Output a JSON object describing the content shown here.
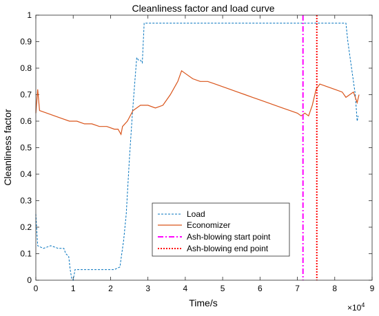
{
  "chart_data": {
    "type": "line",
    "title": "Cleanliness factor and load curve",
    "xlabel": "Time/s",
    "ylabel": "Cleanliness factor",
    "x_exponent_label": "×10^4",
    "x_exponent_base": "×10",
    "x_exponent_power": "4",
    "xlim": [
      0,
      9
    ],
    "ylim": [
      0,
      1
    ],
    "x_ticks": [
      0,
      1,
      2,
      3,
      4,
      5,
      6,
      7,
      8,
      9
    ],
    "y_ticks": [
      0,
      0.1,
      0.2,
      0.3,
      0.4,
      0.5,
      0.6,
      0.7,
      0.8,
      0.9,
      1
    ],
    "x_tick_labels": [
      "0",
      "1",
      "2",
      "3",
      "4",
      "5",
      "6",
      "7",
      "8",
      "9"
    ],
    "y_tick_labels": [
      "0",
      "0.1",
      "0.2",
      "0.3",
      "0.4",
      "0.5",
      "0.6",
      "0.7",
      "0.8",
      "0.9",
      "1"
    ],
    "grid": false,
    "legend_position": "bottom-center",
    "series": [
      {
        "name": "Load",
        "color": "#0072BD",
        "style": "dashed",
        "points": [
          [
            0,
            0.25
          ],
          [
            0.05,
            0.13
          ],
          [
            0.2,
            0.12
          ],
          [
            0.4,
            0.13
          ],
          [
            0.6,
            0.12
          ],
          [
            0.75,
            0.12
          ],
          [
            0.8,
            0.1
          ],
          [
            0.88,
            0.09
          ],
          [
            0.92,
            0.04
          ],
          [
            0.96,
            0.005
          ],
          [
            1.0,
            0.0
          ],
          [
            1.05,
            0.04
          ],
          [
            1.2,
            0.04
          ],
          [
            1.5,
            0.04
          ],
          [
            1.8,
            0.04
          ],
          [
            2.1,
            0.04
          ],
          [
            2.25,
            0.05
          ],
          [
            2.35,
            0.15
          ],
          [
            2.42,
            0.25
          ],
          [
            2.5,
            0.45
          ],
          [
            2.58,
            0.62
          ],
          [
            2.65,
            0.75
          ],
          [
            2.7,
            0.84
          ],
          [
            2.75,
            0.83
          ],
          [
            2.8,
            0.83
          ],
          [
            2.85,
            0.82
          ],
          [
            2.9,
            0.97
          ],
          [
            3.2,
            0.97
          ],
          [
            3.6,
            0.97
          ],
          [
            4.0,
            0.97
          ],
          [
            4.4,
            0.97
          ],
          [
            4.8,
            0.97
          ],
          [
            5.2,
            0.97
          ],
          [
            5.6,
            0.97
          ],
          [
            6.0,
            0.97
          ],
          [
            6.4,
            0.97
          ],
          [
            6.8,
            0.97
          ],
          [
            7.2,
            0.97
          ],
          [
            7.6,
            0.97
          ],
          [
            8.0,
            0.97
          ],
          [
            8.3,
            0.97
          ],
          [
            8.35,
            0.9
          ],
          [
            8.45,
            0.8
          ],
          [
            8.55,
            0.7
          ],
          [
            8.6,
            0.6
          ],
          [
            8.63,
            0.62
          ]
        ]
      },
      {
        "name": "Economizer",
        "color": "#D95319",
        "style": "solid",
        "points": [
          [
            0,
            0.63
          ],
          [
            0.05,
            0.72
          ],
          [
            0.1,
            0.64
          ],
          [
            0.3,
            0.63
          ],
          [
            0.5,
            0.62
          ],
          [
            0.7,
            0.61
          ],
          [
            0.9,
            0.6
          ],
          [
            1.1,
            0.6
          ],
          [
            1.3,
            0.59
          ],
          [
            1.5,
            0.59
          ],
          [
            1.7,
            0.58
          ],
          [
            1.9,
            0.58
          ],
          [
            2.1,
            0.57
          ],
          [
            2.2,
            0.57
          ],
          [
            2.28,
            0.55
          ],
          [
            2.32,
            0.58
          ],
          [
            2.45,
            0.6
          ],
          [
            2.6,
            0.64
          ],
          [
            2.8,
            0.66
          ],
          [
            3.0,
            0.66
          ],
          [
            3.2,
            0.65
          ],
          [
            3.4,
            0.66
          ],
          [
            3.6,
            0.7
          ],
          [
            3.8,
            0.75
          ],
          [
            3.9,
            0.79
          ],
          [
            4.0,
            0.78
          ],
          [
            4.2,
            0.76
          ],
          [
            4.4,
            0.75
          ],
          [
            4.6,
            0.75
          ],
          [
            4.8,
            0.74
          ],
          [
            5.0,
            0.73
          ],
          [
            5.2,
            0.72
          ],
          [
            5.4,
            0.71
          ],
          [
            5.6,
            0.7
          ],
          [
            5.8,
            0.69
          ],
          [
            6.0,
            0.68
          ],
          [
            6.2,
            0.67
          ],
          [
            6.4,
            0.66
          ],
          [
            6.6,
            0.65
          ],
          [
            6.8,
            0.64
          ],
          [
            7.0,
            0.63
          ],
          [
            7.1,
            0.62
          ],
          [
            7.2,
            0.63
          ],
          [
            7.3,
            0.62
          ],
          [
            7.4,
            0.66
          ],
          [
            7.5,
            0.72
          ],
          [
            7.6,
            0.74
          ],
          [
            7.8,
            0.73
          ],
          [
            8.0,
            0.72
          ],
          [
            8.2,
            0.71
          ],
          [
            8.3,
            0.69
          ],
          [
            8.4,
            0.7
          ],
          [
            8.5,
            0.71
          ],
          [
            8.6,
            0.67
          ],
          [
            8.65,
            0.7
          ]
        ]
      },
      {
        "name": "Ash-blowing start point",
        "color": "#FF00FF",
        "style": "dashdot",
        "x": 7.15
      },
      {
        "name": "Ash-blowing end point",
        "color": "#FF0000",
        "style": "dotted",
        "x": 7.52
      }
    ]
  }
}
